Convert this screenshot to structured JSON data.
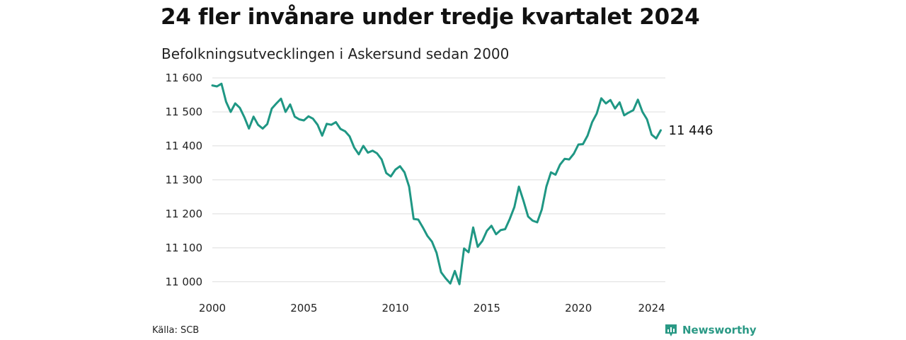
{
  "header": {
    "title": "24 fler invånare under tredje kvartalet 2024",
    "subtitle": "Befolkningsutvecklingen i Askersund sedan 2000"
  },
  "footer": {
    "source": "Källa: SCB",
    "brand": "Newsworthy",
    "brand_icon": "newsworthy-logo-icon"
  },
  "colors": {
    "line": "#1f9784",
    "grid": "#dddddd",
    "brand": "#2a9985"
  },
  "chart_data": {
    "type": "line",
    "title": "24 fler invånare under tredje kvartalet 2024",
    "subtitle": "Befolkningsutvecklingen i Askersund sedan 2000",
    "xlabel": "",
    "ylabel": "",
    "xlim": [
      2000,
      2024.75
    ],
    "ylim": [
      10985,
      11600
    ],
    "x_ticks": [
      2000,
      2005,
      2010,
      2015,
      2020,
      2024
    ],
    "y_ticks": [
      11000,
      11100,
      11200,
      11300,
      11400,
      11500,
      11600
    ],
    "y_tick_labels": [
      "11 000",
      "11 100",
      "11 200",
      "11 300",
      "11 400",
      "11 500",
      "11 600"
    ],
    "grid": "horizontal",
    "end_label": "11 446",
    "series": [
      {
        "x": [
          2000.0,
          2000.25,
          2000.5,
          2000.75,
          2001.0,
          2001.25,
          2001.5,
          2001.75,
          2002.0,
          2002.25,
          2002.5,
          2002.75,
          2003.0,
          2003.25,
          2003.5,
          2003.75,
          2004.0,
          2004.25,
          2004.5,
          2004.75,
          2005.0,
          2005.25,
          2005.5,
          2005.75,
          2006.0,
          2006.25,
          2006.5,
          2006.75,
          2007.0,
          2007.25,
          2007.5,
          2007.75,
          2008.0,
          2008.25,
          2008.5,
          2008.75,
          2009.0,
          2009.25,
          2009.5,
          2009.75,
          2010.0,
          2010.25,
          2010.5,
          2010.75,
          2011.0,
          2011.25,
          2011.5,
          2011.75,
          2012.0,
          2012.25,
          2012.5,
          2012.75,
          2013.0,
          2013.25,
          2013.5,
          2013.75,
          2014.0,
          2014.25,
          2014.5,
          2014.75,
          2015.0,
          2015.25,
          2015.5,
          2015.75,
          2016.0,
          2016.25,
          2016.5,
          2016.75,
          2017.0,
          2017.25,
          2017.5,
          2017.75,
          2018.0,
          2018.25,
          2018.5,
          2018.75,
          2019.0,
          2019.25,
          2019.5,
          2019.75,
          2020.0,
          2020.25,
          2020.5,
          2020.75,
          2021.0,
          2021.25,
          2021.5,
          2021.75,
          2022.0,
          2022.25,
          2022.5,
          2022.75,
          2023.0,
          2023.25,
          2023.5,
          2023.75,
          2024.0,
          2024.25,
          2024.5
        ],
        "values": [
          11578,
          11575,
          11583,
          11530,
          11500,
          11525,
          11512,
          11484,
          11451,
          11486,
          11462,
          11451,
          11464,
          11510,
          11525,
          11539,
          11500,
          11522,
          11486,
          11478,
          11475,
          11487,
          11480,
          11462,
          11430,
          11465,
          11462,
          11470,
          11450,
          11443,
          11428,
          11395,
          11375,
          11400,
          11380,
          11386,
          11378,
          11360,
          11320,
          11310,
          11330,
          11340,
          11322,
          11280,
          11185,
          11183,
          11160,
          11135,
          11118,
          11085,
          11028,
          11010,
          10995,
          11032,
          10993,
          11098,
          11087,
          11160,
          11103,
          11120,
          11150,
          11165,
          11140,
          11152,
          11155,
          11185,
          11220,
          11280,
          11238,
          11192,
          11180,
          11175,
          11213,
          11280,
          11322,
          11315,
          11345,
          11362,
          11360,
          11377,
          11404,
          11405,
          11430,
          11470,
          11495,
          11540,
          11525,
          11535,
          11510,
          11528,
          11490,
          11498,
          11505,
          11536,
          11500,
          11478,
          11433,
          11422,
          11446
        ]
      }
    ]
  }
}
